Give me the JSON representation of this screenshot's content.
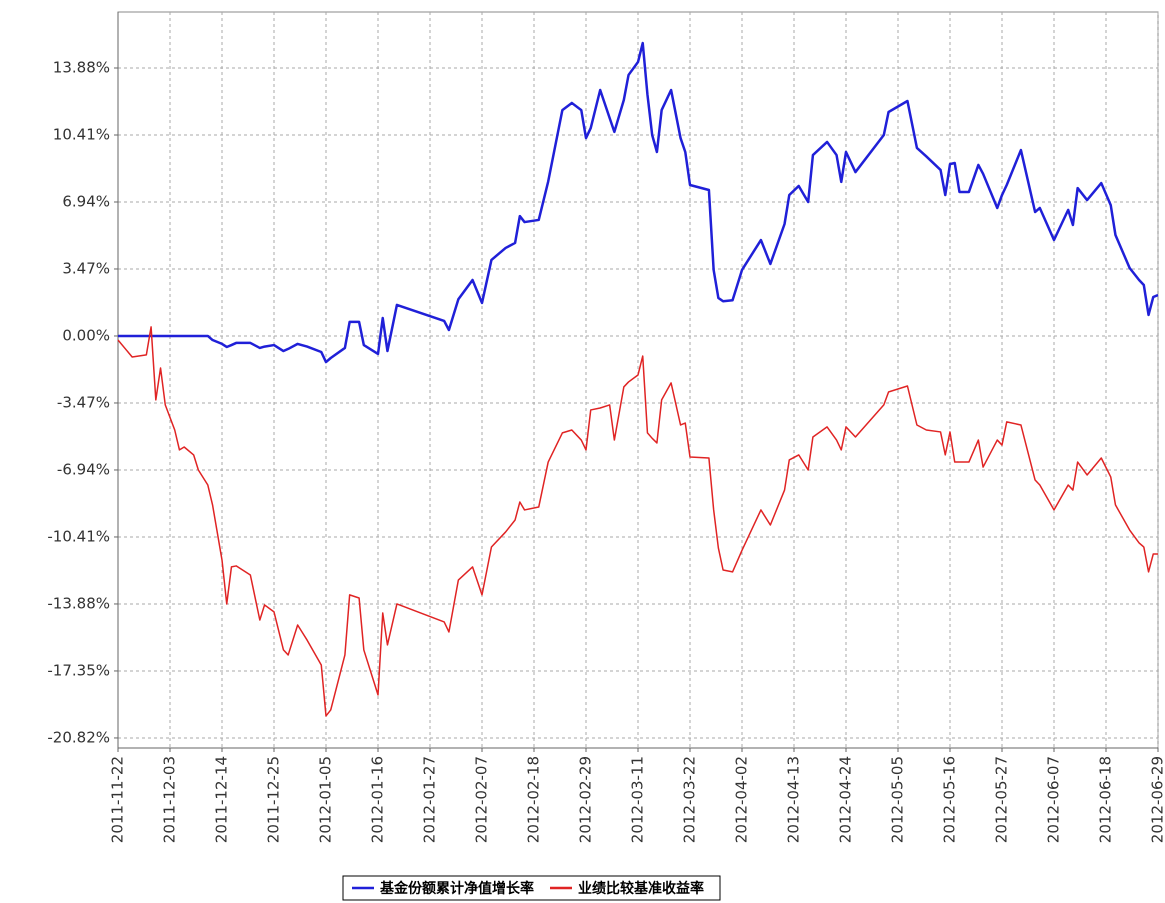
{
  "chart_data": {
    "type": "line",
    "x": [
      "2011-11-22",
      "2011-11-25",
      "2011-11-28",
      "2011-11-29",
      "2011-11-30",
      "2011-12-01",
      "2011-12-02",
      "2011-12-04",
      "2011-12-05",
      "2011-12-06",
      "2011-12-08",
      "2011-12-09",
      "2011-12-11",
      "2011-12-12",
      "2011-12-14",
      "2011-12-15",
      "2011-12-16",
      "2011-12-17",
      "2011-12-20",
      "2011-12-22",
      "2011-12-23",
      "2011-12-25",
      "2011-12-27",
      "2011-12-28",
      "2011-12-30",
      "2012-01-01",
      "2012-01-04",
      "2012-01-05",
      "2012-01-06",
      "2012-01-09",
      "2012-01-10",
      "2012-01-12",
      "2012-01-13",
      "2012-01-16",
      "2012-01-17",
      "2012-01-18",
      "2012-01-20",
      "2012-01-30",
      "2012-01-31",
      "2012-02-02",
      "2012-02-05",
      "2012-02-07",
      "2012-02-09",
      "2012-02-12",
      "2012-02-14",
      "2012-02-15",
      "2012-02-16",
      "2012-02-19",
      "2012-02-21",
      "2012-02-24",
      "2012-02-26",
      "2012-02-28",
      "2012-02-29",
      "2012-03-01",
      "2012-03-03",
      "2012-03-05",
      "2012-03-06",
      "2012-03-08",
      "2012-03-09",
      "2012-03-11",
      "2012-03-12",
      "2012-03-13",
      "2012-03-14",
      "2012-03-15",
      "2012-03-16",
      "2012-03-18",
      "2012-03-20",
      "2012-03-21",
      "2012-03-22",
      "2012-03-26",
      "2012-03-27",
      "2012-03-28",
      "2012-03-29",
      "2012-03-31",
      "2012-04-02",
      "2012-04-06",
      "2012-04-08",
      "2012-04-11",
      "2012-04-12",
      "2012-04-14",
      "2012-04-16",
      "2012-04-17",
      "2012-04-20",
      "2012-04-22",
      "2012-04-23",
      "2012-04-24",
      "2012-04-26",
      "2012-05-02",
      "2012-05-03",
      "2012-05-07",
      "2012-05-09",
      "2012-05-11",
      "2012-05-14",
      "2012-05-15",
      "2012-05-16",
      "2012-05-17",
      "2012-05-18",
      "2012-05-20",
      "2012-05-22",
      "2012-05-23",
      "2012-05-26",
      "2012-05-27",
      "2012-05-28",
      "2012-05-31",
      "2012-06-03",
      "2012-06-04",
      "2012-06-07",
      "2012-06-10",
      "2012-06-11",
      "2012-06-12",
      "2012-06-14",
      "2012-06-17",
      "2012-06-19",
      "2012-06-20",
      "2012-06-23",
      "2012-06-25",
      "2012-06-26",
      "2012-06-27",
      "2012-06-28",
      "2012-06-29"
    ],
    "series": [
      {
        "name": "基金份额累计净值增长率",
        "color": "#2020d8",
        "values": [
          0,
          0,
          0,
          0,
          0,
          0,
          0,
          0,
          0,
          0,
          0,
          0,
          0,
          -0.21,
          -0.41,
          -0.57,
          -0.47,
          -0.36,
          -0.36,
          -0.62,
          -0.55,
          -0.47,
          -0.78,
          -0.67,
          -0.41,
          -0.55,
          -0.83,
          -1.35,
          -1.14,
          -0.62,
          0.73,
          0.73,
          -0.47,
          -0.93,
          0.93,
          -0.78,
          1.61,
          0.78,
          0.31,
          1.9,
          2.9,
          1.71,
          3.94,
          4.56,
          4.82,
          6.21,
          5.9,
          6.01,
          8.0,
          11.7,
          12.07,
          11.7,
          10.25,
          10.77,
          12.74,
          11.29,
          10.57,
          12.22,
          13.52,
          14.19,
          15.17,
          12.5,
          10.41,
          9.53,
          11.7,
          12.74,
          10.25,
          9.53,
          7.82,
          7.56,
          3.42,
          1.97,
          1.8,
          1.85,
          3.42,
          4.97,
          3.73,
          5.8,
          7.3,
          7.77,
          6.94,
          9.37,
          10.05,
          9.37,
          7.98,
          9.53,
          8.49,
          10.41,
          11.6,
          12.17,
          9.74,
          9.3,
          8.6,
          7.3,
          8.9,
          8.96,
          7.46,
          7.46,
          8.86,
          8.4,
          6.63,
          7.3,
          7.82,
          9.63,
          6.42,
          6.63,
          4.97,
          6.53,
          5.75,
          7.66,
          7.04,
          7.92,
          6.78,
          5.23,
          3.52,
          2.9,
          2.64,
          1.09,
          2.02,
          2.12
        ]
      },
      {
        "name": "业绩比较基准收益率",
        "color": "#e02424",
        "values": [
          -0.21,
          -1.09,
          -0.98,
          0.47,
          -3.31,
          -1.66,
          -3.57,
          -4.87,
          -5.9,
          -5.75,
          -6.16,
          -6.94,
          -7.72,
          -8.75,
          -11.6,
          -13.88,
          -11.96,
          -11.91,
          -12.38,
          -14.71,
          -13.93,
          -14.29,
          -16.26,
          -16.52,
          -14.97,
          -15.75,
          -17.04,
          -19.68,
          -19.37,
          -16.52,
          -13.41,
          -13.57,
          -16.26,
          -18.59,
          -14.35,
          -16.0,
          -13.88,
          -14.81,
          -15.33,
          -12.64,
          -11.96,
          -13.41,
          -10.93,
          -10.15,
          -9.53,
          -8.6,
          -9.01,
          -8.86,
          -6.53,
          -5.02,
          -4.87,
          -5.39,
          -5.9,
          -3.83,
          -3.73,
          -3.57,
          -5.39,
          -2.64,
          -2.38,
          -2.02,
          -1.04,
          -5.02,
          -5.3,
          -5.54,
          -3.31,
          -2.43,
          -4.61,
          -4.51,
          -6.27,
          -6.32,
          -9.0,
          -10.98,
          -12.12,
          -12.22,
          -11.1,
          -9.01,
          -9.79,
          -7.98,
          -6.42,
          -6.16,
          -6.94,
          -5.23,
          -4.71,
          -5.39,
          -5.9,
          -4.71,
          -5.23,
          -3.57,
          -2.9,
          -2.59,
          -4.61,
          -4.87,
          -4.97,
          -6.16,
          -4.97,
          -6.53,
          -6.53,
          -6.53,
          -5.39,
          -6.79,
          -5.39,
          -5.65,
          -4.45,
          -4.61,
          -7.46,
          -7.72,
          -9.01,
          -7.72,
          -7.98,
          -6.53,
          -7.2,
          -6.32,
          -7.3,
          -8.75,
          -10.05,
          -10.72,
          -10.93,
          -12.22,
          -11.29,
          -11.29
        ]
      }
    ],
    "xlim": [
      "2011-11-22",
      "2012-06-29"
    ],
    "xticks": [
      "2011-11-22",
      "2011-12-03",
      "2011-12-14",
      "2011-12-25",
      "2012-01-05",
      "2012-01-16",
      "2012-01-27",
      "2012-02-07",
      "2012-02-18",
      "2012-02-29",
      "2012-03-11",
      "2012-03-22",
      "2012-04-02",
      "2012-04-13",
      "2012-04-24",
      "2012-05-05",
      "2012-05-16",
      "2012-05-27",
      "2012-06-07",
      "2012-06-18",
      "2012-06-29"
    ],
    "ylim": [
      -21.34,
      16.78
    ],
    "yticks": [
      {
        "value": -20.82,
        "label": "-20.82%"
      },
      {
        "value": -17.35,
        "label": "-17.35%"
      },
      {
        "value": -13.88,
        "label": "-13.88%"
      },
      {
        "value": -10.41,
        "label": "-10.41%"
      },
      {
        "value": -6.94,
        "label": "-6.94%"
      },
      {
        "value": -3.47,
        "label": "-3.47%"
      },
      {
        "value": 0,
        "label": "0.00%"
      },
      {
        "value": 3.47,
        "label": "3.47%"
      },
      {
        "value": 6.94,
        "label": "6.94%"
      },
      {
        "value": 10.41,
        "label": "10.41%"
      },
      {
        "value": 13.88,
        "label": "13.88%"
      }
    ],
    "grid": true
  }
}
